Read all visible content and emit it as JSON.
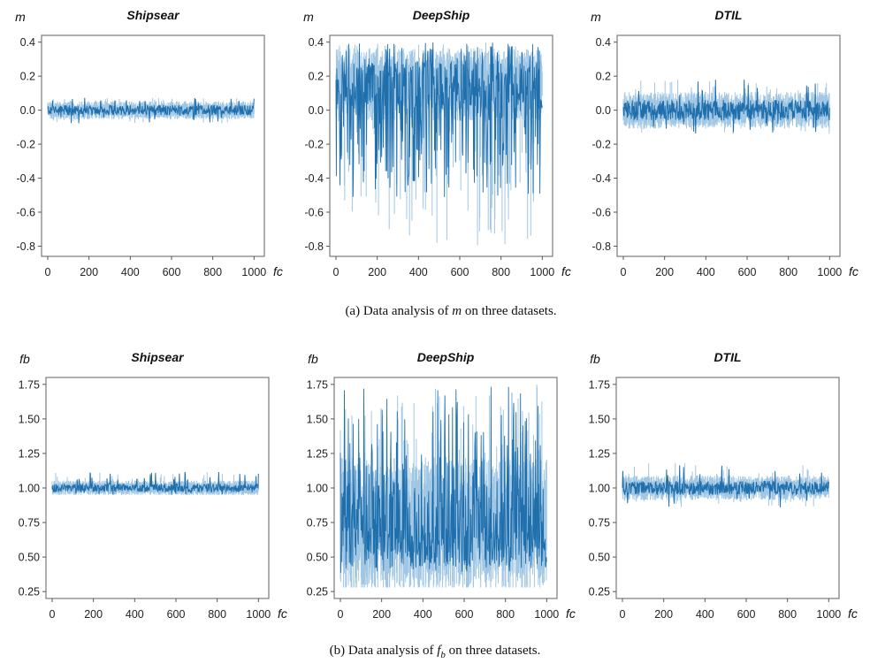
{
  "captions": {
    "a": {
      "prefix": "(a)  Data analysis of ",
      "var": "m",
      "suffix": " on three datasets."
    },
    "b": {
      "prefix": "(b)  Data analysis of ",
      "var": "f",
      "sub": "b",
      "suffix": " on three datasets."
    }
  },
  "colors": {
    "series_dark": "#1f6fad",
    "series_light": "#8ab9dd"
  },
  "chart_data": [
    {
      "type": "line",
      "title": "Shipsear",
      "xlabel": "fc",
      "ylabel": "m",
      "xlim": [
        -30,
        1050
      ],
      "ylim": [
        -0.86,
        0.44
      ],
      "xticks": [
        0,
        200,
        400,
        600,
        800,
        1000
      ],
      "yticks": [
        0.4,
        0.2,
        0.0,
        -0.2,
        -0.4,
        -0.6,
        -0.8
      ],
      "ytick_labels": [
        "0.4",
        "0.2",
        "0.0",
        "-0.2",
        "-0.4",
        "-0.6",
        "-0.8"
      ],
      "grid": false,
      "series": [
        {
          "x_range": [
            0,
            1000
          ],
          "center": 0.0,
          "amplitude": 0.03,
          "max": 0.08,
          "min": -0.08
        }
      ]
    },
    {
      "type": "line",
      "title": "DeepShip",
      "xlabel": "fc",
      "ylabel": "m",
      "xlim": [
        -30,
        1050
      ],
      "ylim": [
        -0.86,
        0.44
      ],
      "xticks": [
        0,
        200,
        400,
        600,
        800,
        1000
      ],
      "yticks": [
        0.4,
        0.2,
        0.0,
        -0.2,
        -0.4,
        -0.6,
        -0.8
      ],
      "ytick_labels": [
        "0.4",
        "0.2",
        "0.0",
        "-0.2",
        "-0.4",
        "-0.6",
        "-0.8"
      ],
      "grid": false,
      "series": [
        {
          "x_range": [
            0,
            1000
          ],
          "center": 0.15,
          "amplitude": 0.12,
          "max": 0.4,
          "min": -0.8
        }
      ]
    },
    {
      "type": "line",
      "title": "DTIL",
      "xlabel": "fc",
      "ylabel": "m",
      "xlim": [
        -30,
        1050
      ],
      "ylim": [
        -0.86,
        0.44
      ],
      "xticks": [
        0,
        200,
        400,
        600,
        800,
        1000
      ],
      "yticks": [
        0.4,
        0.2,
        0.0,
        -0.2,
        -0.4,
        -0.6,
        -0.8
      ],
      "ytick_labels": [
        "0.4",
        "0.2",
        "0.0",
        "-0.2",
        "-0.4",
        "-0.6",
        "-0.8"
      ],
      "grid": false,
      "series": [
        {
          "x_range": [
            0,
            1000
          ],
          "center": 0.0,
          "amplitude": 0.06,
          "max": 0.18,
          "min": -0.14
        }
      ]
    },
    {
      "type": "line",
      "title": "Shipsear",
      "xlabel": "fc",
      "ylabel": "fb",
      "xlim": [
        -30,
        1050
      ],
      "ylim": [
        0.2,
        1.8
      ],
      "xticks": [
        0,
        200,
        400,
        600,
        800,
        1000
      ],
      "yticks": [
        1.75,
        1.5,
        1.25,
        1.0,
        0.75,
        0.5,
        0.25
      ],
      "ytick_labels": [
        "1.75",
        "1.50",
        "1.25",
        "1.00",
        "0.75",
        "0.50",
        "0.25"
      ],
      "grid": false,
      "series": [
        {
          "x_range": [
            0,
            1000
          ],
          "center": 1.0,
          "amplitude": 0.03,
          "max": 1.12,
          "min": 0.95
        }
      ]
    },
    {
      "type": "line",
      "title": "DeepShip",
      "xlabel": "fc",
      "ylabel": "fb",
      "xlim": [
        -30,
        1050
      ],
      "ylim": [
        0.2,
        1.8
      ],
      "xticks": [
        0,
        200,
        400,
        600,
        800,
        1000
      ],
      "yticks": [
        1.75,
        1.5,
        1.25,
        1.0,
        0.75,
        0.5,
        0.25
      ],
      "ytick_labels": [
        "1.75",
        "1.50",
        "1.25",
        "1.00",
        "0.75",
        "0.50",
        "0.25"
      ],
      "grid": false,
      "series": [
        {
          "x_range": [
            0,
            1000
          ],
          "center": 0.72,
          "amplitude": 0.28,
          "max": 1.75,
          "min": 0.28
        }
      ]
    },
    {
      "type": "line",
      "title": "DTIL",
      "xlabel": "fc",
      "ylabel": "fb",
      "xlim": [
        -30,
        1050
      ],
      "ylim": [
        0.2,
        1.8
      ],
      "xticks": [
        0,
        200,
        400,
        600,
        800,
        1000
      ],
      "yticks": [
        1.75,
        1.5,
        1.25,
        1.0,
        0.75,
        0.5,
        0.25
      ],
      "ytick_labels": [
        "1.75",
        "1.50",
        "1.25",
        "1.00",
        "0.75",
        "0.50",
        "0.25"
      ],
      "grid": false,
      "series": [
        {
          "x_range": [
            0,
            1000
          ],
          "center": 1.0,
          "amplitude": 0.05,
          "max": 1.18,
          "min": 0.86
        }
      ]
    }
  ]
}
